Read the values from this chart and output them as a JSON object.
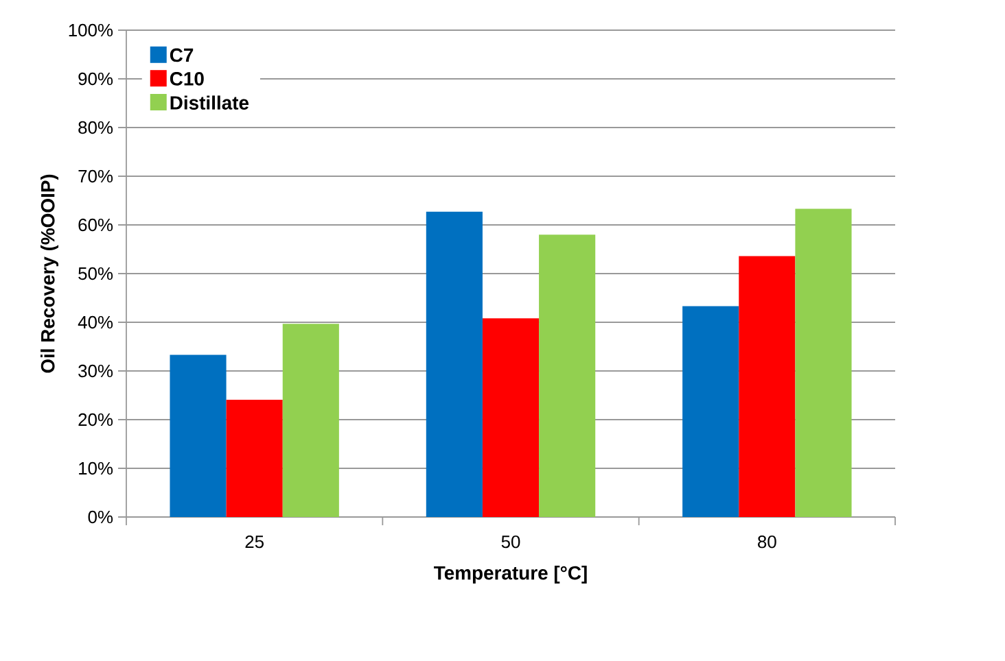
{
  "chart_data": {
    "type": "bar",
    "xlabel": "Temperature [°C]",
    "ylabel": "Oil Recovery (%OOIP)",
    "categories": [
      "25",
      "50",
      "80"
    ],
    "series": [
      {
        "name": "C7",
        "color": "#0070c0",
        "values": [
          33.3,
          62.7,
          43.3
        ]
      },
      {
        "name": "C10",
        "color": "#ff0000",
        "values": [
          24.1,
          40.8,
          53.6
        ]
      },
      {
        "name": "Distillate",
        "color": "#92d050",
        "values": [
          39.7,
          58.0,
          63.3
        ]
      }
    ],
    "ylim": [
      0,
      100
    ],
    "yticks": [
      {
        "value": 0,
        "label": "0%"
      },
      {
        "value": 10,
        "label": "10%"
      },
      {
        "value": 20,
        "label": "20%"
      },
      {
        "value": 30,
        "label": "30%"
      },
      {
        "value": 40,
        "label": "40%"
      },
      {
        "value": 50,
        "label": "50%"
      },
      {
        "value": 60,
        "label": "60%"
      },
      {
        "value": 70,
        "label": "70%"
      },
      {
        "value": 80,
        "label": "80%"
      },
      {
        "value": 90,
        "label": "90%"
      },
      {
        "value": 100,
        "label": "100%"
      }
    ],
    "grid": "y",
    "legend": "top left"
  }
}
